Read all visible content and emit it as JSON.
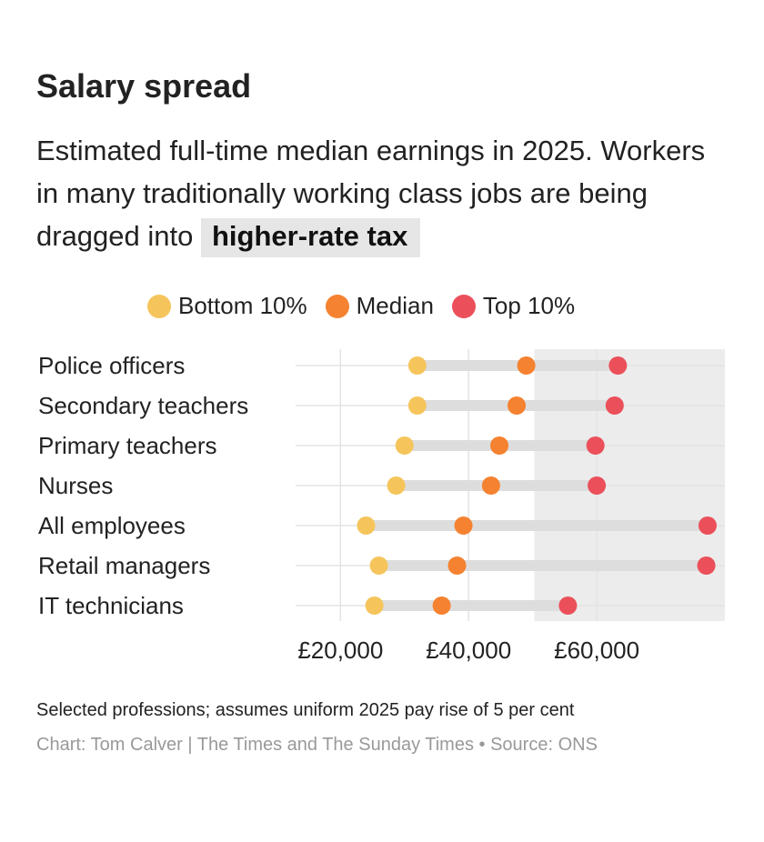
{
  "title": "Salary spread",
  "subtitle": {
    "text": "Estimated full-time median earnings in 2025. Workers in many traditionally working class jobs are being dragged into",
    "highlight": "higher-rate tax"
  },
  "legend": [
    {
      "label": "Bottom 10%",
      "color": "#f5c55c"
    },
    {
      "label": "Median",
      "color": "#f58230"
    },
    {
      "label": "Top 10%",
      "color": "#eb505a"
    }
  ],
  "chart_data": {
    "type": "dumbbell",
    "title": "Salary spread",
    "xlabel": "",
    "ylabel": "",
    "xlim": [
      13000,
      80000
    ],
    "x_ticks": [
      20000,
      40000,
      60000
    ],
    "x_tick_labels": [
      "£20,000",
      "£40,000",
      "£60,000"
    ],
    "shaded_region": {
      "from": 50270,
      "to": 80000,
      "label": "higher-rate tax"
    },
    "grid": true,
    "legend_position": "top",
    "categories": [
      "Police officers",
      "Secondary teachers",
      "Primary teachers",
      "Nurses",
      "All employees",
      "Retail managers",
      "IT technicians"
    ],
    "series": [
      {
        "name": "Bottom 10%",
        "color": "#f5c55c",
        "values": [
          32000,
          32000,
          30000,
          28700,
          24000,
          26000,
          25300
        ]
      },
      {
        "name": "Median",
        "color": "#f58230",
        "values": [
          49000,
          47500,
          44800,
          43500,
          39200,
          38200,
          35800
        ]
      },
      {
        "name": "Top 10%",
        "color": "#eb505a",
        "values": [
          63300,
          62800,
          59800,
          60000,
          77300,
          77100,
          55500
        ]
      }
    ]
  },
  "footer": {
    "note": "Selected professions; assumes uniform 2025 pay rise of 5 per cent",
    "credit": "Chart: Tom Calver | The Times and The Sunday Times • Source: ONS"
  },
  "colors": {
    "range_bar": "#dddddd",
    "shade": "#ececec",
    "grid": "#e4e4e4"
  }
}
